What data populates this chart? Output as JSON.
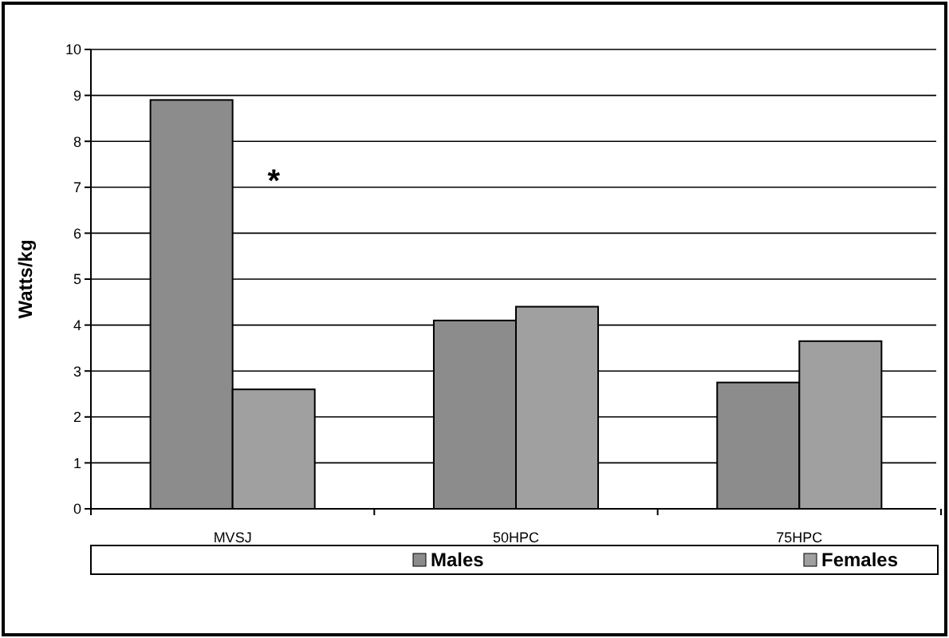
{
  "chart_data": {
    "type": "bar",
    "ylabel": "Watts/kg",
    "categories": [
      "MVSJ",
      "50HPC",
      "75HPC"
    ],
    "series": [
      {
        "name": "Males",
        "color": "#8c8c8c",
        "values": [
          8.9,
          4.1,
          2.75
        ]
      },
      {
        "name": "Females",
        "color": "#a0a0a0",
        "values": [
          2.6,
          4.4,
          3.65
        ]
      }
    ],
    "ylim": [
      0,
      10
    ],
    "yticks": [
      0,
      1,
      2,
      3,
      4,
      5,
      6,
      7,
      8,
      9,
      10
    ],
    "grid": "y",
    "legend": "bottom",
    "annotations": [
      {
        "text": "*",
        "x": "MVSJ",
        "y": 7.4
      }
    ]
  }
}
